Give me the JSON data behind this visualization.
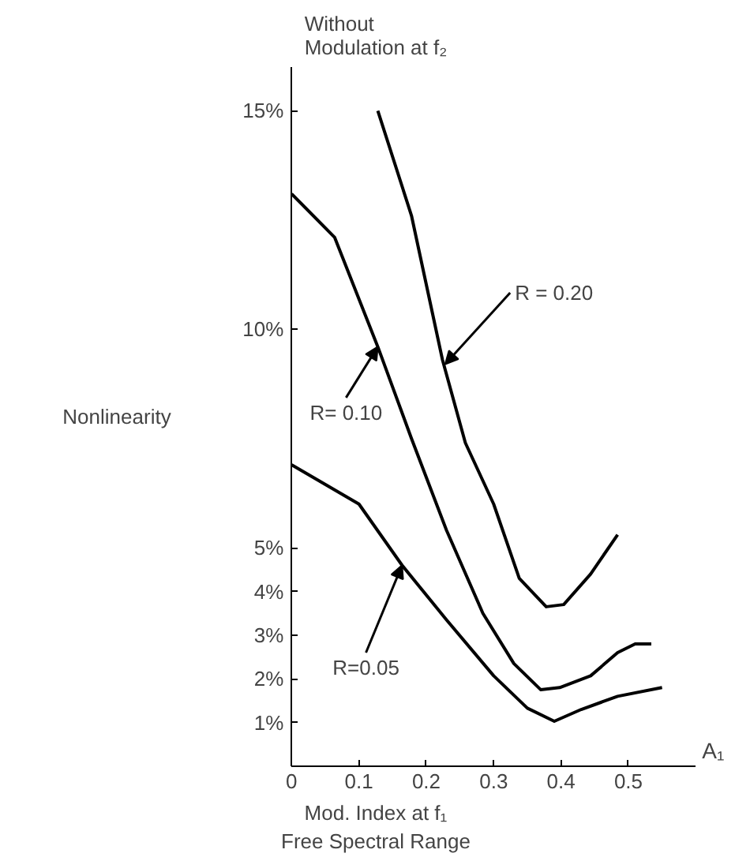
{
  "chart_data": {
    "type": "line",
    "title": "Without\nModulation at f₂",
    "xlabel": "Mod. Index at f₁\nFree Spectral Range",
    "ylabel": "Nonlinearity",
    "xlim": [
      0,
      0.6
    ],
    "ylim": [
      0,
      16
    ],
    "xticks": [
      0,
      0.1,
      0.2,
      0.3,
      0.4,
      0.5
    ],
    "yticks": [
      {
        "value": 1,
        "label": "1%"
      },
      {
        "value": 2,
        "label": "2%"
      },
      {
        "value": 3,
        "label": "3%"
      },
      {
        "value": 4,
        "label": "4%"
      },
      {
        "value": 5,
        "label": "5%"
      },
      {
        "value": 10,
        "label": "10%"
      },
      {
        "value": 15,
        "label": "15%"
      }
    ],
    "grid": false,
    "marker": "none",
    "line_style": "solid",
    "series": [
      {
        "color": "#000000",
        "x": [
          0,
          0.1,
          0.164,
          0.23,
          0.3,
          0.35,
          0.39,
          0.43,
          0.484,
          0.55
        ],
        "values": [
          6.9,
          6.0,
          4.6,
          3.35,
          2.07,
          1.33,
          1.03,
          1.3,
          1.6,
          1.8
        ]
      },
      {
        "color": "#000000",
        "x": [
          0,
          0.064,
          0.128,
          0.178,
          0.23,
          0.284,
          0.33,
          0.37,
          0.398,
          0.444,
          0.484,
          0.51,
          0.534
        ],
        "values": [
          13.1,
          12.1,
          9.6,
          7.5,
          5.4,
          3.5,
          2.35,
          1.75,
          1.8,
          2.07,
          2.6,
          2.8,
          2.8
        ]
      },
      {
        "color": "#000000",
        "x": [
          0.128,
          0.178,
          0.224,
          0.258,
          0.3,
          0.338,
          0.378,
          0.404,
          0.444,
          0.484
        ],
        "values": [
          15.0,
          12.6,
          9.3,
          7.4,
          6.0,
          4.3,
          3.65,
          3.7,
          4.4,
          5.3
        ]
      }
    ],
    "annotations": [
      {
        "text": "R = 0.20",
        "x": 0.228,
        "y": 9.2
      },
      {
        "text": "R= 0.10",
        "x": 0.128,
        "y": 9.6
      },
      {
        "text": "R=0.05",
        "x": 0.164,
        "y": 4.6
      },
      "A₁"
    ]
  }
}
